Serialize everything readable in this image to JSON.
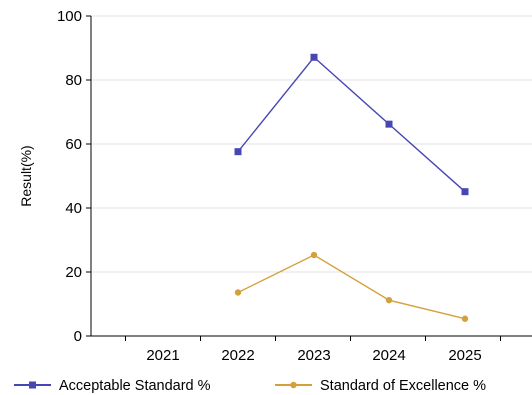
{
  "chart_data": {
    "type": "line",
    "categories": [
      "2021",
      "2022",
      "2023",
      "2024",
      "2025"
    ],
    "ylabel": "Result(%)",
    "ylim": [
      0,
      100
    ],
    "yticks": [
      0,
      20,
      40,
      60,
      80,
      100
    ],
    "grid": "horizontal",
    "legend": "bottom",
    "series": [
      {
        "name": "Acceptable Standard %",
        "color": "#4747b3",
        "marker": "square",
        "values": [
          null,
          57.6,
          87.1,
          66.2,
          45.1
        ]
      },
      {
        "name": "Standard of Excellence %",
        "color": "#d4a03c",
        "marker": "circle",
        "values": [
          null,
          13.6,
          25.3,
          11.2,
          5.4
        ]
      }
    ]
  }
}
